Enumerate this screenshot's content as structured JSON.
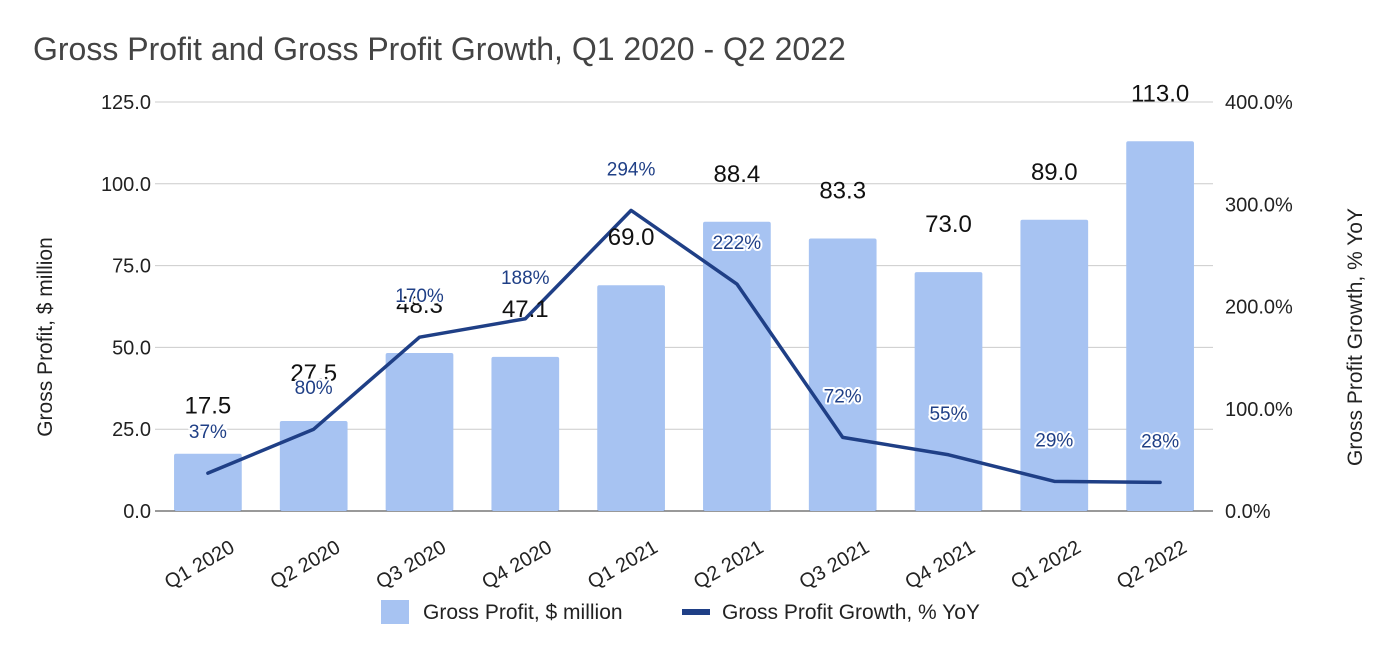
{
  "chart_data": {
    "type": "bar",
    "title": "Gross Profit and Gross Profit Growth, Q1 2020 - Q2 2022",
    "categories": [
      "Q1 2020",
      "Q2 2020",
      "Q3 2020",
      "Q4 2020",
      "Q1 2021",
      "Q2 2021",
      "Q3 2021",
      "Q4 2021",
      "Q1 2022",
      "Q2 2022"
    ],
    "ylabel": "Gross Profit, $ million",
    "ylabel_right": "Gross Profit Growth, % YoY",
    "ylim": [
      0,
      125
    ],
    "ylim_right": [
      0,
      400
    ],
    "y_ticks": [
      "0.0",
      "25.0",
      "50.0",
      "75.0",
      "100.0",
      "125.0"
    ],
    "y_ticks_right": [
      "0.0%",
      "100.0%",
      "200.0%",
      "300.0%",
      "400.0%"
    ],
    "grid": true,
    "legend_position": "bottom",
    "series": [
      {
        "name": "Gross Profit, $ million",
        "type": "bar",
        "axis": "left",
        "color": "#a7c3f2",
        "values": [
          17.5,
          27.5,
          48.3,
          47.1,
          69.0,
          88.4,
          83.3,
          73.0,
          89.0,
          113.0
        ],
        "labels": [
          "17.5",
          "27.5",
          "48.3",
          "47.1",
          "69.0",
          "88.4",
          "83.3",
          "73.0",
          "89.0",
          "113.0"
        ]
      },
      {
        "name": "Gross Profit Growth, % YoY",
        "type": "line",
        "axis": "right",
        "color": "#1f3f86",
        "values": [
          37,
          80,
          170,
          188,
          294,
          222,
          72,
          55,
          29,
          28
        ],
        "labels": [
          "37%",
          "80%",
          "170%",
          "188%",
          "294%",
          "222%",
          "72%",
          "55%",
          "29%",
          "28%"
        ]
      }
    ]
  }
}
